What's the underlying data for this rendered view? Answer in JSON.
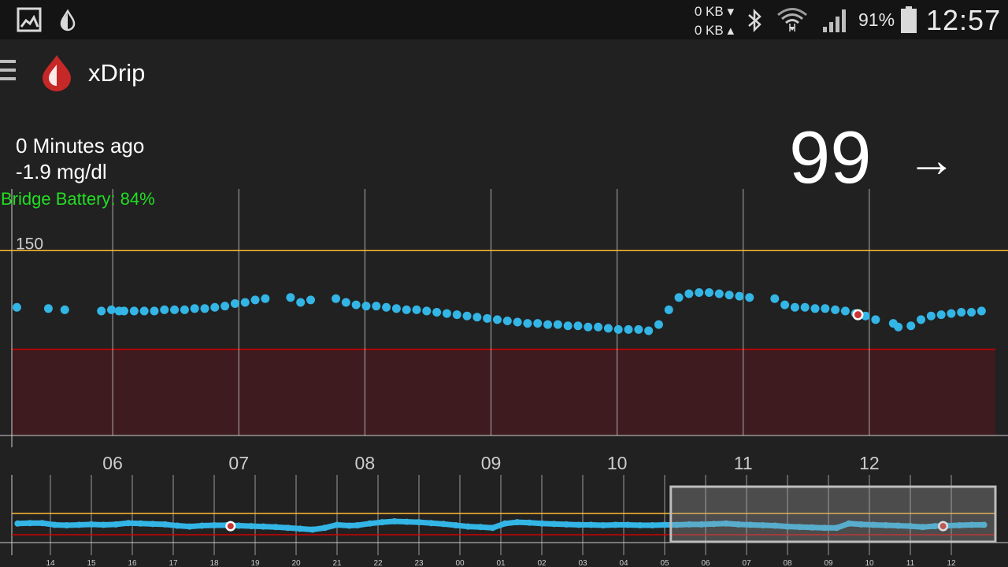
{
  "status_bar": {
    "kb_down": "0 KB ▾",
    "kb_up": "0 KB ▴",
    "battery_percent": "91%",
    "time": "12:57",
    "icons": [
      "gallery-icon",
      "drop-icon",
      "bluetooth-icon",
      "wifi-icon",
      "signal-icon",
      "battery-icon"
    ]
  },
  "app": {
    "title": "xDrip",
    "logo_icon": "blood-drop-icon"
  },
  "reading": {
    "minutes_ago": "0 Minutes ago",
    "delta": "-1.9 mg/dl",
    "bridge_battery": "Bridge Battery: 84%",
    "value": "99",
    "trend_arrow": "→"
  },
  "chart_data": [
    {
      "type": "scatter",
      "name": "main",
      "x_ticks": [
        "06",
        "07",
        "08",
        "09",
        "10",
        "11",
        "12"
      ],
      "x_tick_hours": [
        6,
        7,
        8,
        9,
        10,
        11,
        12
      ],
      "xlim": [
        5.2,
        13.0
      ],
      "ylim": [
        0,
        200
      ],
      "high_line": 150,
      "high_label": "150",
      "low_band": [
        0,
        70
      ],
      "colors": {
        "points": "#33b5e5",
        "high": "#ffbb33",
        "low_fill": "#3e1b1e",
        "low_line": "#cc0000",
        "grid": "#cfcfcf",
        "calibration": "#cc3333"
      },
      "x": [
        5.24,
        5.49,
        5.62,
        5.91,
        5.99,
        6.05,
        6.09,
        6.17,
        6.25,
        6.33,
        6.41,
        6.49,
        6.57,
        6.65,
        6.73,
        6.81,
        6.89,
        6.97,
        7.05,
        7.13,
        7.21,
        7.41,
        7.49,
        7.57,
        7.77,
        7.85,
        7.93,
        8.01,
        8.09,
        8.17,
        8.25,
        8.33,
        8.41,
        8.49,
        8.57,
        8.65,
        8.73,
        8.81,
        8.89,
        8.97,
        9.05,
        9.13,
        9.21,
        9.29,
        9.37,
        9.45,
        9.53,
        9.61,
        9.69,
        9.77,
        9.85,
        9.93,
        10.01,
        10.09,
        10.17,
        10.25,
        10.33,
        10.41,
        10.49,
        10.57,
        10.65,
        10.73,
        10.81,
        10.89,
        10.97,
        11.05,
        11.25,
        11.33,
        11.41,
        11.49,
        11.57,
        11.65,
        11.73,
        11.81,
        11.89,
        11.97,
        12.05,
        12.19,
        12.23,
        12.33,
        12.41,
        12.49,
        12.57,
        12.65,
        12.73,
        12.81,
        12.89
      ],
      "y": [
        104,
        103,
        102,
        101,
        102,
        101,
        101,
        101,
        101,
        101,
        102,
        102,
        102,
        103,
        103,
        104,
        105,
        107,
        108,
        110,
        111,
        112,
        108,
        110,
        111,
        108,
        106,
        105,
        105,
        104,
        103,
        102,
        102,
        101,
        100,
        99,
        98,
        97,
        96,
        95,
        94,
        93,
        92,
        91,
        91,
        90,
        90,
        89,
        89,
        88,
        88,
        87,
        86,
        86,
        86,
        85,
        90,
        102,
        112,
        115,
        116,
        116,
        115,
        114,
        113,
        112,
        111,
        106,
        104,
        104,
        103,
        103,
        102,
        101,
        99,
        97,
        94,
        91,
        88,
        89,
        94,
        97,
        98,
        99,
        100,
        100,
        101
      ],
      "calibration_points": [
        {
          "x": 11.91,
          "y": 98
        }
      ]
    },
    {
      "type": "scatter",
      "name": "overview",
      "x_ticks": [
        "14",
        "15",
        "16",
        "17",
        "18",
        "19",
        "20",
        "21",
        "22",
        "23",
        "00",
        "01",
        "02",
        "03",
        "04",
        "05",
        "06",
        "07",
        "08",
        "09",
        "10",
        "11",
        "12"
      ],
      "xlim": [
        13.0,
        37.0
      ],
      "ylim": [
        60,
        150
      ],
      "high_line": 150,
      "low_line": 70,
      "selection_range": [
        29.15,
        37.0
      ],
      "x": [
        13.2,
        13.5,
        13.8,
        14.1,
        14.4,
        14.7,
        15.0,
        15.3,
        15.6,
        15.9,
        16.2,
        16.5,
        16.8,
        17.1,
        17.4,
        17.7,
        18.0,
        18.3,
        18.6,
        18.9,
        19.2,
        19.5,
        19.8,
        20.1,
        20.4,
        20.7,
        21.0,
        21.3,
        21.5,
        21.8,
        22.1,
        22.4,
        22.7,
        23.0,
        23.3,
        23.6,
        23.9,
        24.2,
        24.5,
        24.8,
        25.1,
        25.4,
        25.7,
        26.0,
        26.3,
        26.6,
        26.9,
        27.2,
        27.5,
        27.8,
        28.1,
        28.4,
        28.7,
        29.0,
        29.3,
        29.6,
        29.9,
        30.2,
        30.5,
        30.8,
        31.1,
        31.4,
        31.7,
        32.0,
        32.3,
        32.6,
        32.9,
        33.2,
        33.5,
        33.8,
        34.1,
        34.4,
        34.7,
        35.0,
        35.3,
        35.6,
        35.9,
        36.2,
        36.5,
        36.8
      ],
      "y": [
        104,
        105,
        105,
        101,
        100,
        101,
        102,
        101,
        102,
        105,
        104,
        103,
        102,
        99,
        97,
        99,
        100,
        100,
        99,
        98,
        97,
        96,
        94,
        92,
        90,
        94,
        101,
        99,
        100,
        104,
        107,
        109,
        108,
        107,
        105,
        103,
        100,
        97,
        96,
        94,
        104,
        107,
        106,
        104,
        103,
        102,
        101,
        101,
        100,
        101,
        101,
        100,
        100,
        101,
        101,
        102,
        102,
        103,
        104,
        102,
        101,
        100,
        99,
        97,
        96,
        95,
        94,
        94,
        104,
        102,
        101,
        100,
        99,
        98,
        96,
        98,
        99,
        100,
        101,
        101
      ],
      "calibration_points": [
        {
          "x": 18.4,
          "y": 98
        },
        {
          "x": 35.8,
          "y": 98
        }
      ]
    }
  ]
}
